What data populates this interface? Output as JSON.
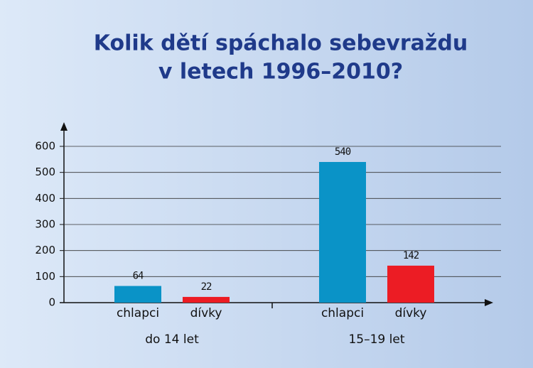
{
  "chart_data": {
    "type": "bar",
    "title": [
      "Kolik dětí spáchalo sebevraždu",
      "v letech 1996–2010?"
    ],
    "categories": [
      "do 14 let",
      "15–19 let"
    ],
    "series": [
      {
        "name": "chlapci",
        "color": "#0a93c7",
        "values": [
          64,
          540
        ]
      },
      {
        "name": "dívky",
        "color": "#ec1c24",
        "values": [
          22,
          142
        ]
      }
    ],
    "ylim": [
      0,
      600
    ],
    "yticks": [
      0,
      100,
      200,
      300,
      400,
      500,
      600
    ],
    "grid": true
  }
}
